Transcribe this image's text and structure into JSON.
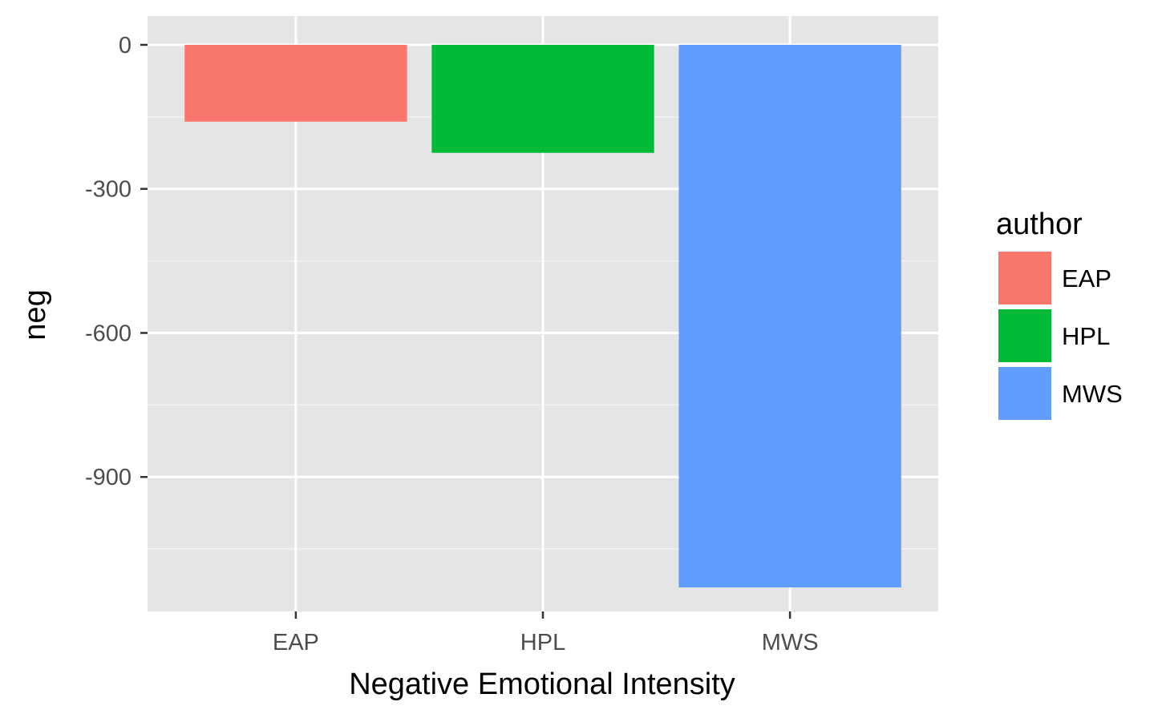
{
  "chart_data": {
    "type": "bar",
    "categories": [
      "EAP",
      "HPL",
      "MWS"
    ],
    "values": [
      -160,
      -225,
      -1130
    ],
    "colors": [
      "#F8766D",
      "#00BA38",
      "#619CFF"
    ],
    "xlabel": "Negative Emotional Intensity",
    "ylabel": "neg",
    "ylim": [
      -1180,
      60
    ],
    "y_ticks": [
      0,
      -300,
      -600,
      -900
    ],
    "y_tick_labels": [
      "0",
      "-300",
      "-600",
      "-900"
    ],
    "grid": true,
    "panel_background": "#E5E5E5",
    "legend": {
      "title": "author",
      "position": "right",
      "entries": [
        "EAP",
        "HPL",
        "MWS"
      ]
    }
  }
}
